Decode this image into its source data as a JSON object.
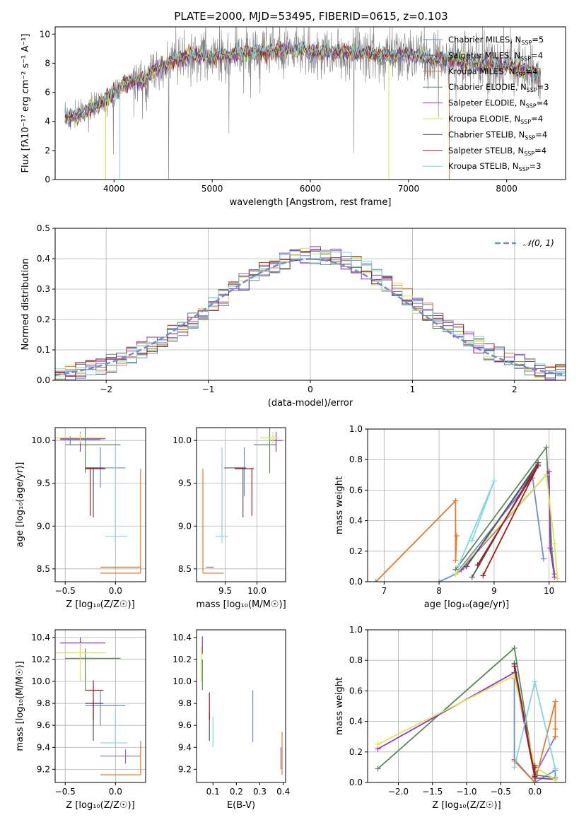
{
  "figure": {
    "title": "PLATE=2000, MJD=53495, FIBERID=0615, z=0.103"
  },
  "colors": {
    "Chabrier MILES": "#6b8ed6",
    "Salpeter MILES": "#9467bd",
    "Kroupa MILES": "#e07b2b",
    "Chabrier ELODIE": "#5a8a5a",
    "Salpeter ELODIE": "#9b30c9",
    "Kroupa ELODIE": "#d6e84e",
    "Chabrier STELIB": "#555555",
    "Salpeter STELIB": "#a11b1b",
    "Kroupa STELIB": "#7fd8de",
    "data": "#808080"
  },
  "chart_data": [
    {
      "id": "spectrum",
      "type": "line",
      "title": "PLATE=2000, MJD=53495, FIBERID=0615, z=0.103",
      "xlabel": "wavelength [Angstrom, rest frame]",
      "ylabel": "Flux [fλ10⁻¹⁷ erg cm⁻² s⁻¹ A⁻¹]",
      "xlim": [
        3400,
        8600
      ],
      "ylim": [
        0,
        10.5
      ],
      "xticks": [
        4000,
        5000,
        6000,
        7000,
        8000
      ],
      "yticks": [
        0,
        2,
        4,
        6,
        8,
        10
      ],
      "grid": false,
      "legend_position": "top-right",
      "legend": [
        "Chabrier MILES, N_SSP=5",
        "Salpeter MILES, N_SSP=4",
        "Kroupa MILES, N_SSP=4",
        "Chabrier ELODIE, N_SSP=3",
        "Salpeter ELODIE, N_SSP=4",
        "Kroupa ELODIE, N_SSP=4",
        "Chabrier STELIB, N_SSP=4",
        "Salpeter STELIB, N_SSP=4",
        "Kroupa STELIB, N_SSP=3"
      ],
      "continuum": {
        "x": [
          3500,
          3600,
          3700,
          3800,
          3900,
          4000,
          4100,
          4200,
          4300,
          4400,
          4600,
          4800,
          5000,
          5200,
          5500,
          5800,
          6000,
          6200,
          6500,
          6800,
          7000,
          7200,
          7400,
          7600,
          7800,
          8000,
          8200,
          8350
        ],
        "y": [
          4.2,
          4.4,
          4.6,
          5.0,
          5.4,
          5.9,
          6.6,
          6.8,
          6.7,
          7.5,
          8.1,
          8.6,
          8.4,
          8.6,
          8.8,
          8.9,
          8.8,
          8.8,
          8.7,
          8.5,
          8.6,
          8.3,
          8.2,
          8.1,
          7.9,
          7.8,
          7.5,
          7.2
        ]
      },
      "data_series": {
        "name": "",
        "x_range": [
          3500,
          8350
        ],
        "noise_sigma": 0.9
      }
    },
    {
      "id": "residuals",
      "type": "bar",
      "xlabel": "(data-model)/error",
      "ylabel": "Normed distribution",
      "xlim": [
        -2.5,
        2.5
      ],
      "ylim": [
        0,
        0.5
      ],
      "xticks": [
        -2,
        -1,
        0,
        1,
        2
      ],
      "yticks": [
        0.0,
        0.1,
        0.2,
        0.3,
        0.4,
        0.5
      ],
      "grid": true,
      "legend_position": "top-right",
      "legend": [
        "𝒩(0, 1)"
      ],
      "bin_width": 0.1,
      "gaussian": {
        "mean": 0,
        "sigma": 1
      }
    },
    {
      "id": "age-vs-Z",
      "type": "scatter",
      "xlabel": "Z [log₁₀(Z/Z☉)]",
      "ylabel": "age  [log₁₀(age/yr)]",
      "xlim": [
        -0.6,
        0.3
      ],
      "ylim": [
        8.35,
        10.15
      ],
      "xticks": [
        -0.5,
        0.0
      ],
      "yticks": [
        8.5,
        9.0,
        9.5,
        10.0
      ],
      "grid": true,
      "points": [
        {
          "model": "Chabrier MILES",
          "x": -0.15,
          "y": 9.68,
          "x0": -0.3,
          "x1": 0.1,
          "y0": 9.45,
          "y1": 9.92
        },
        {
          "model": "Salpeter MILES",
          "x": -0.45,
          "y": 10.01,
          "x0": -0.55,
          "x1": -0.15,
          "y0": 9.95,
          "y1": 10.05
        },
        {
          "model": "Kroupa MILES",
          "x": 0.25,
          "y": 8.45,
          "x0": -0.15,
          "x1": 0.25,
          "y0": 8.45,
          "y1": 9.67
        },
        {
          "model": "Chabrier ELODIE",
          "x": -0.3,
          "y": 9.95,
          "x0": -0.5,
          "x1": 0.05,
          "y0": 9.62,
          "y1": 10.15
        },
        {
          "model": "Salpeter ELODIE",
          "x": -0.35,
          "y": 10.02,
          "x0": -0.55,
          "x1": -0.1,
          "y0": 9.87,
          "y1": 10.1
        },
        {
          "model": "Kroupa ELODIE",
          "x": -0.35,
          "y": 10.03,
          "x0": -0.6,
          "x1": -0.1,
          "y0": 9.97,
          "y1": 10.09
        },
        {
          "model": "Chabrier STELIB",
          "x": -0.22,
          "y": 9.68,
          "x0": -0.3,
          "x1": -0.12,
          "y0": 9.1,
          "y1": 9.68
        },
        {
          "model": "Salpeter STELIB",
          "x": -0.25,
          "y": 9.67,
          "x0": -0.3,
          "x1": -0.1,
          "y0": 9.12,
          "y1": 9.68
        },
        {
          "model": "Kroupa STELIB",
          "x": 0.0,
          "y": 8.88,
          "x0": -0.1,
          "x1": 0.12,
          "y0": 8.8,
          "y1": 9.92
        },
        {
          "model": "Kroupa MILES",
          "x": 0.1,
          "y": 8.52,
          "x0": -0.15,
          "x1": 0.25,
          "y0": 8.52,
          "y1": 8.52
        }
      ]
    },
    {
      "id": "age-vs-mass",
      "type": "scatter",
      "xlabel": "mass [log₁₀(M/M☉)]",
      "ylabel": "",
      "xlim": [
        9.05,
        10.45
      ],
      "ylim": [
        8.35,
        10.15
      ],
      "xticks": [
        9.5,
        10.0
      ],
      "yticks": [
        8.5,
        9.0,
        9.5,
        10.0
      ],
      "grid": true,
      "points": [
        {
          "model": "Chabrier MILES",
          "x": 9.8,
          "y": 9.68,
          "x0": 9.78,
          "x1": 9.82,
          "y0": 9.35,
          "y1": 9.92
        },
        {
          "model": "Kroupa MILES",
          "x": 9.15,
          "y": 8.45,
          "x0": 9.15,
          "x1": 9.48,
          "y0": 8.45,
          "y1": 9.67
        },
        {
          "model": "Chabrier ELODIE",
          "x": 10.2,
          "y": 9.95,
          "x0": 9.95,
          "x1": 10.3,
          "y0": 9.62,
          "y1": 10.15
        },
        {
          "model": "Salpeter ELODIE",
          "x": 10.3,
          "y": 10.0,
          "x0": 10.22,
          "x1": 10.4,
          "y0": 9.87,
          "y1": 10.1
        },
        {
          "model": "Kroupa ELODIE",
          "x": 10.25,
          "y": 10.03,
          "x0": 10.05,
          "x1": 10.35,
          "y0": 9.95,
          "y1": 10.1
        },
        {
          "model": "Chabrier STELIB",
          "x": 9.78,
          "y": 9.68,
          "x0": 9.48,
          "x1": 9.83,
          "y0": 9.1,
          "y1": 9.68
        },
        {
          "model": "Salpeter STELIB",
          "x": 9.92,
          "y": 9.67,
          "x0": 9.65,
          "x1": 9.95,
          "y0": 9.12,
          "y1": 9.68
        },
        {
          "model": "Kroupa STELIB",
          "x": 9.45,
          "y": 8.88,
          "x0": 9.35,
          "x1": 9.55,
          "y0": 8.8,
          "y1": 9.92
        },
        {
          "model": "Salpeter MILES",
          "x": 9.3,
          "y": 8.52,
          "x0": 9.2,
          "x1": 9.32,
          "y0": 8.52,
          "y1": 8.52
        }
      ]
    },
    {
      "id": "weight-vs-age",
      "type": "line",
      "xlabel": "age  [log₁₀(age/yr)]",
      "ylabel": "mass weight",
      "xlim": [
        6.7,
        10.3
      ],
      "ylim": [
        0,
        1.0
      ],
      "xticks": [
        7,
        8,
        9,
        10
      ],
      "yticks": [
        0.0,
        0.2,
        0.4,
        0.6,
        0.8,
        1.0
      ],
      "grid": true,
      "series": [
        {
          "model": "Chabrier MILES",
          "x": [
            8.0,
            8.3,
            9.7,
            9.9
          ],
          "y": [
            0.0,
            0.05,
            0.68,
            0.15
          ]
        },
        {
          "model": "Salpeter MILES",
          "x": [
            8.3,
            8.5,
            9.8
          ],
          "y": [
            0.05,
            0.1,
            0.77
          ]
        },
        {
          "model": "Kroupa MILES",
          "x": [
            6.85,
            8.3,
            8.3,
            8.32
          ],
          "y": [
            0.0,
            0.53,
            0.14,
            0.3
          ]
        },
        {
          "model": "Chabrier ELODIE",
          "x": [
            8.3,
            9.95,
            10.05,
            10.1
          ],
          "y": [
            0.08,
            0.88,
            0.2,
            0.05
          ]
        },
        {
          "model": "Salpeter ELODIE",
          "x": [
            8.4,
            10.0,
            10.02,
            10.1
          ],
          "y": [
            0.08,
            0.72,
            0.22,
            0.03
          ]
        },
        {
          "model": "Kroupa ELODIE",
          "x": [
            8.3,
            9.95,
            10.1,
            10.15
          ],
          "y": [
            0.05,
            0.7,
            0.25,
            0.02
          ]
        },
        {
          "model": "Chabrier STELIB",
          "x": [
            8.6,
            9.8,
            8.5
          ],
          "y": [
            0.03,
            0.78,
            0.1
          ]
        },
        {
          "model": "Salpeter STELIB",
          "x": [
            8.8,
            9.8,
            8.7
          ],
          "y": [
            0.04,
            0.76,
            0.11
          ]
        },
        {
          "model": "Kroupa STELIB",
          "x": [
            8.35,
            9.0,
            8.6
          ],
          "y": [
            0.1,
            0.66,
            0.27
          ]
        }
      ]
    },
    {
      "id": "mass-vs-Z",
      "type": "scatter",
      "xlabel": "Z [log₁₀(Z/Z☉)]",
      "ylabel": "mass [log₁₀(M/M☉)]",
      "xlim": [
        -0.6,
        0.3
      ],
      "ylim": [
        9.08,
        10.47
      ],
      "xticks": [
        -0.5,
        0.0
      ],
      "yticks": [
        9.2,
        9.4,
        9.6,
        9.8,
        10.0,
        10.2,
        10.4
      ],
      "grid": true,
      "points": [
        {
          "model": "Chabrier MILES",
          "x": -0.15,
          "y": 9.78,
          "x0": -0.3,
          "x1": 0.1,
          "y0": 9.6,
          "y1": 9.92
        },
        {
          "model": "Salpeter MILES",
          "x": 0.1,
          "y": 9.32,
          "x0": -0.15,
          "x1": 0.25,
          "y0": 9.25,
          "y1": 9.38
        },
        {
          "model": "Kroupa MILES",
          "x": 0.25,
          "y": 9.15,
          "x0": -0.15,
          "x1": 0.25,
          "y0": 9.15,
          "y1": 9.46
        },
        {
          "model": "Chabrier ELODIE",
          "x": -0.3,
          "y": 10.21,
          "x0": -0.5,
          "x1": 0.05,
          "y0": 9.92,
          "y1": 10.3
        },
        {
          "model": "Salpeter ELODIE",
          "x": -0.35,
          "y": 10.35,
          "x0": -0.55,
          "x1": -0.1,
          "y0": 10.2,
          "y1": 10.4
        },
        {
          "model": "Kroupa ELODIE",
          "x": -0.35,
          "y": 10.26,
          "x0": -0.6,
          "x1": -0.1,
          "y0": 10.0,
          "y1": 10.35
        },
        {
          "model": "Chabrier STELIB",
          "x": -0.22,
          "y": 9.8,
          "x0": -0.3,
          "x1": -0.12,
          "y0": 9.46,
          "y1": 9.82
        },
        {
          "model": "Salpeter STELIB",
          "x": -0.22,
          "y": 9.92,
          "x0": -0.3,
          "x1": -0.12,
          "y0": 9.65,
          "y1": 10.01
        },
        {
          "model": "Kroupa STELIB",
          "x": 0.0,
          "y": 9.44,
          "x0": -0.15,
          "x1": 0.12,
          "y0": 9.4,
          "y1": 9.73
        }
      ]
    },
    {
      "id": "mass-vs-EBV",
      "type": "scatter",
      "xlabel": "E(B-V)",
      "ylabel": "",
      "xlim": [
        0.03,
        0.41
      ],
      "ylim": [
        9.08,
        10.47
      ],
      "xticks": [
        0.1,
        0.2,
        0.3,
        0.4
      ],
      "yticks": [
        9.2,
        9.4,
        9.6,
        9.8,
        10.0,
        10.2,
        10.4
      ],
      "grid": false,
      "points": [
        {
          "model": "Chabrier MILES",
          "x": 0.27,
          "y": 9.78,
          "y0": 9.45,
          "y1": 9.92
        },
        {
          "model": "Kroupa MILES",
          "x": 0.395,
          "y": 9.3,
          "y0": 9.15,
          "y1": 9.54
        },
        {
          "model": "Salpeter MILES",
          "x": 0.39,
          "y": 9.3,
          "y0": 9.2,
          "y1": 9.4
        },
        {
          "model": "Chabrier ELODIE",
          "x": 0.055,
          "y": 10.1,
          "y0": 9.92,
          "y1": 10.2
        },
        {
          "model": "Salpeter ELODIE",
          "x": 0.055,
          "y": 10.35,
          "y0": 10.25,
          "y1": 10.41
        },
        {
          "model": "Kroupa ELODIE",
          "x": 0.05,
          "y": 10.2,
          "y0": 10.0,
          "y1": 10.32
        },
        {
          "model": "Chabrier STELIB",
          "x": 0.085,
          "y": 9.6,
          "y0": 9.46,
          "y1": 9.72
        },
        {
          "model": "Salpeter STELIB",
          "x": 0.085,
          "y": 9.8,
          "y0": 9.65,
          "y1": 9.9
        },
        {
          "model": "Kroupa STELIB",
          "x": 0.1,
          "y": 9.55,
          "y0": 9.4,
          "y1": 9.68
        }
      ]
    },
    {
      "id": "weight-vs-Z",
      "type": "line",
      "xlabel": "Z [log₁₀(Z/Z☉)]",
      "ylabel": "mass weight",
      "xlim": [
        -2.45,
        0.45
      ],
      "ylim": [
        0,
        1.0
      ],
      "xticks": [
        -2.0,
        -1.5,
        -1.0,
        -0.5,
        0.0
      ],
      "yticks": [
        0.0,
        0.2,
        0.4,
        0.6,
        0.8,
        1.0
      ],
      "grid": true,
      "series": [
        {
          "model": "Chabrier MILES",
          "x": [
            -0.3,
            -0.3,
            0.0,
            0.3,
            0.3
          ],
          "y": [
            0.68,
            0.15,
            0.0,
            0.08,
            0.02
          ]
        },
        {
          "model": "Salpeter MILES",
          "x": [
            -0.3,
            0.0,
            0.3
          ],
          "y": [
            0.77,
            0.05,
            0.3
          ]
        },
        {
          "model": "Kroupa MILES",
          "x": [
            -0.3,
            0.0,
            0.3,
            0.3,
            0.3
          ],
          "y": [
            0.14,
            0.0,
            0.53,
            0.35,
            0.3
          ]
        },
        {
          "model": "Chabrier ELODIE",
          "x": [
            -2.3,
            -0.3,
            0.0,
            0.3
          ],
          "y": [
            0.09,
            0.88,
            0.05,
            0.03
          ]
        },
        {
          "model": "Salpeter ELODIE",
          "x": [
            -2.3,
            -0.3,
            0.0,
            0.3
          ],
          "y": [
            0.22,
            0.72,
            0.03,
            0.02
          ]
        },
        {
          "model": "Kroupa ELODIE",
          "x": [
            -2.3,
            -0.3,
            0.0,
            0.3
          ],
          "y": [
            0.25,
            0.7,
            0.1,
            0.02
          ]
        },
        {
          "model": "Chabrier STELIB",
          "x": [
            -0.3,
            0.0,
            0.0
          ],
          "y": [
            0.78,
            0.03,
            0.1
          ]
        },
        {
          "model": "Salpeter STELIB",
          "x": [
            -0.3,
            0.0,
            0.0
          ],
          "y": [
            0.76,
            0.04,
            0.11
          ]
        },
        {
          "model": "Kroupa STELIB",
          "x": [
            -0.3,
            0.0,
            0.3
          ],
          "y": [
            0.1,
            0.66,
            0.09
          ]
        }
      ]
    }
  ]
}
